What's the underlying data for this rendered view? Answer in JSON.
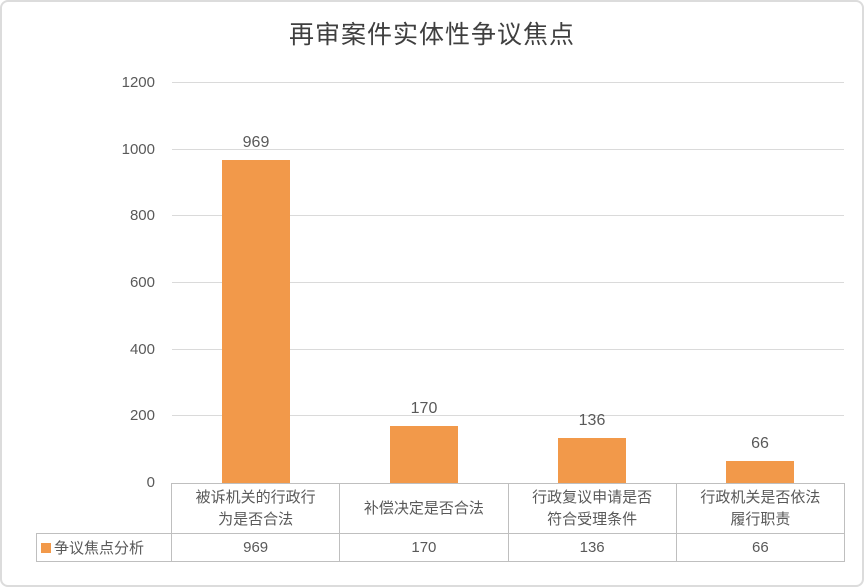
{
  "chart_data": {
    "type": "bar",
    "title": "再审案件实体性争议焦点",
    "categories": [
      "被诉机关的行政行为是否合法",
      "补偿决定是否合法",
      "行政复议申请是否符合受理条件",
      "行政机关是否依法履行职责"
    ],
    "series": [
      {
        "name": "争议焦点分析",
        "values": [
          969,
          170,
          136,
          66
        ]
      }
    ],
    "xlabel": "",
    "ylabel": "",
    "ylim": [
      0,
      1200
    ],
    "yticks": [
      0,
      200,
      400,
      600,
      800,
      1000,
      1200
    ],
    "grid": true,
    "legend_position": "bottom-left-data-table",
    "bar_color": "#f2994a",
    "data_labels_shown": true
  }
}
